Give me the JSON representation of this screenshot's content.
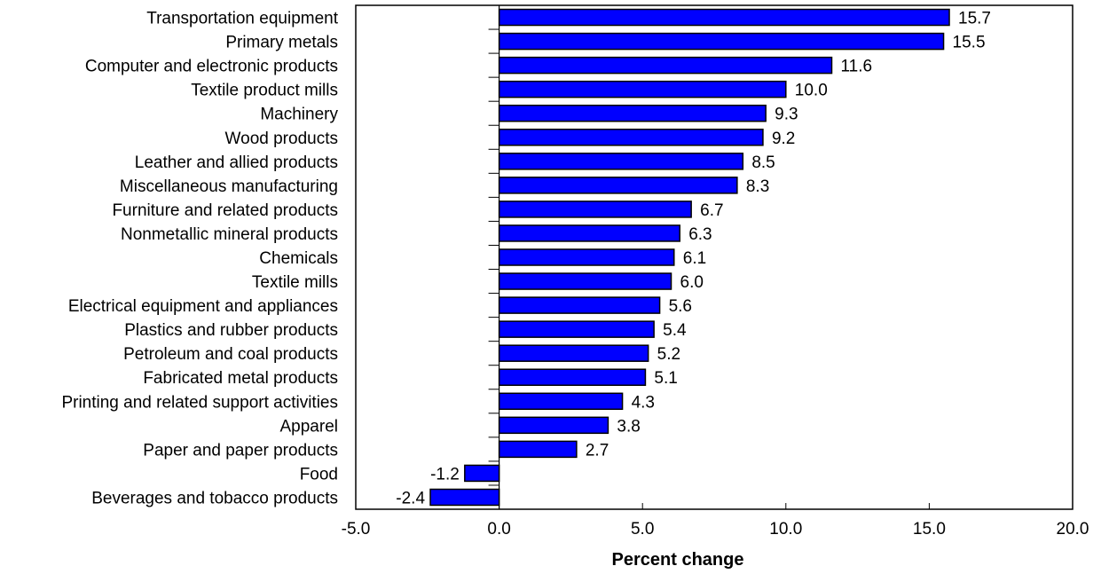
{
  "chart_data": {
    "type": "bar",
    "orientation": "horizontal",
    "categories": [
      "Transportation equipment",
      "Primary metals",
      "Computer and electronic products",
      "Textile product mills",
      "Machinery",
      "Wood products",
      "Leather and allied products",
      "Miscellaneous manufacturing",
      "Furniture and related products",
      "Nonmetallic mineral products",
      "Chemicals",
      "Textile mills",
      "Electrical equipment and appliances",
      "Plastics and rubber products",
      "Petroleum and coal products",
      "Fabricated metal products",
      "Printing and related support activities",
      "Apparel",
      "Paper and paper products",
      "Food",
      "Beverages and tobacco products"
    ],
    "values": [
      15.7,
      15.5,
      11.6,
      10.0,
      9.3,
      9.2,
      8.5,
      8.3,
      6.7,
      6.3,
      6.1,
      6.0,
      5.6,
      5.4,
      5.2,
      5.1,
      4.3,
      3.8,
      2.7,
      -1.2,
      -2.4
    ],
    "value_labels": [
      "15.7",
      "15.5",
      "11.6",
      "10.0",
      "9.3",
      "9.2",
      "8.5",
      "8.3",
      "6.7",
      "6.3",
      "6.1",
      "6.0",
      "5.6",
      "5.4",
      "5.2",
      "5.1",
      "4.3",
      "3.8",
      "2.7",
      "-1.2",
      "-2.4"
    ],
    "xlabel": "Percent change",
    "ylabel": "",
    "title": "",
    "xlim": [
      -5.0,
      20.0
    ],
    "x_ticks": [
      -5.0,
      0.0,
      5.0,
      10.0,
      15.0,
      20.0
    ],
    "x_tick_labels": [
      "-5.0",
      "0.0",
      "5.0",
      "10.0",
      "15.0",
      "20.0"
    ],
    "grid": false,
    "legend": "none",
    "bar_color": "#0000FF",
    "bar_edge_color": "#000000"
  }
}
